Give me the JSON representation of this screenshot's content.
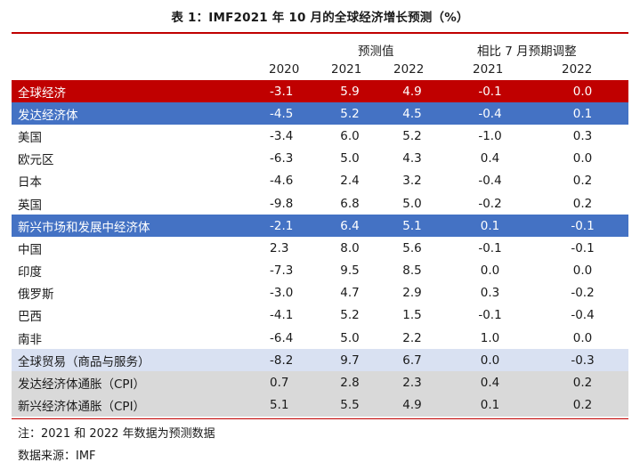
{
  "title": "表 1：IMF2021 年 10 月的全球经济增长预测（%）",
  "header": {
    "group_forecast": "预测值",
    "group_revision": "相比 7 月预期调整",
    "years": [
      "2020",
      "2021",
      "2022",
      "2021",
      "2022"
    ]
  },
  "rows": [
    {
      "name": "全球经济",
      "v": [
        "-3.1",
        "5.9",
        "4.9",
        "-0.1",
        "0.0"
      ],
      "style": "red"
    },
    {
      "name": "发达经济体",
      "v": [
        "-4.5",
        "5.2",
        "4.5",
        "-0.4",
        "0.1"
      ],
      "style": "blue"
    },
    {
      "name": "美国",
      "v": [
        "-3.4",
        "6.0",
        "5.2",
        "-1.0",
        "0.3"
      ],
      "style": ""
    },
    {
      "name": "欧元区",
      "v": [
        "-6.3",
        "5.0",
        "4.3",
        "0.4",
        "0.0"
      ],
      "style": ""
    },
    {
      "name": "日本",
      "v": [
        "-4.6",
        "2.4",
        "3.2",
        "-0.4",
        "0.2"
      ],
      "style": ""
    },
    {
      "name": "英国",
      "v": [
        "-9.8",
        "6.8",
        "5.0",
        "-0.2",
        "0.2"
      ],
      "style": ""
    },
    {
      "name": "新兴市场和发展中经济体",
      "v": [
        "-2.1",
        "6.4",
        "5.1",
        "0.1",
        "-0.1"
      ],
      "style": "blue"
    },
    {
      "name": "中国",
      "v": [
        "2.3",
        "8.0",
        "5.6",
        "-0.1",
        "-0.1"
      ],
      "style": ""
    },
    {
      "name": "印度",
      "v": [
        "-7.3",
        "9.5",
        "8.5",
        "0.0",
        "0.0"
      ],
      "style": ""
    },
    {
      "name": "俄罗斯",
      "v": [
        "-3.0",
        "4.7",
        "2.9",
        "0.3",
        "-0.2"
      ],
      "style": ""
    },
    {
      "name": "巴西",
      "v": [
        "-4.1",
        "5.2",
        "1.5",
        "-0.1",
        "-0.4"
      ],
      "style": ""
    },
    {
      "name": "南非",
      "v": [
        "-6.4",
        "5.0",
        "2.2",
        "1.0",
        "0.0"
      ],
      "style": ""
    },
    {
      "name": "全球贸易（商品与服务）",
      "v": [
        "-8.2",
        "9.7",
        "6.7",
        "0.0",
        "-0.3"
      ],
      "style": "lightblue"
    },
    {
      "name": "发达经济体通胀（CPI）",
      "v": [
        "0.7",
        "2.8",
        "2.3",
        "0.4",
        "0.2"
      ],
      "style": "gray"
    },
    {
      "name": "新兴经济体通胀（CPI）",
      "v": [
        "5.1",
        "5.5",
        "4.9",
        "0.1",
        "0.2"
      ],
      "style": "gray"
    }
  ],
  "notes": {
    "note": "注：2021 和 2022 年数据为预测数据",
    "source": "数据来源：IMF"
  }
}
